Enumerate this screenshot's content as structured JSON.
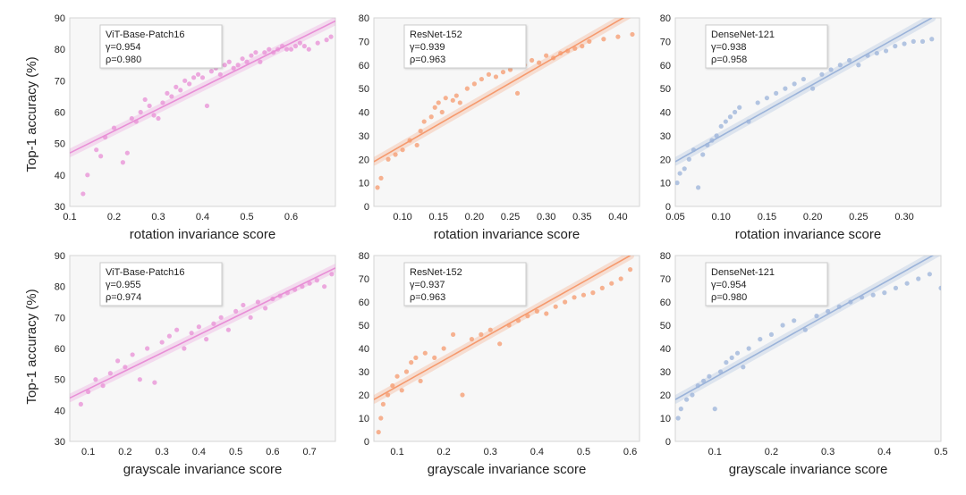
{
  "figure": {
    "ylabel": "Top-1 accuracy (%)"
  },
  "chart_data": [
    {
      "type": "scatter",
      "title": "",
      "xlabel": "rotation invariance score",
      "ylabel": "Top-1 accuracy (%)",
      "xlim": [
        0.1,
        0.7
      ],
      "ylim": [
        30,
        90
      ],
      "xticks": [
        0.1,
        0.2,
        0.3,
        0.4,
        0.5,
        0.6
      ],
      "xtick_labels": [
        "0.1",
        "0.2",
        "0.3",
        "0.4",
        "0.5",
        "0.6"
      ],
      "yticks": [
        30,
        40,
        50,
        60,
        70,
        80,
        90
      ],
      "ytick_labels": [
        "30",
        "40",
        "50",
        "60",
        "70",
        "80",
        "90"
      ],
      "color": "#e88fd6",
      "series_name": "ViT-Base-Patch16",
      "stat_gamma": "γ=0.954",
      "stat_rho": "ρ=0.980",
      "fit": [
        [
          0.1,
          47
        ],
        [
          0.7,
          89
        ]
      ],
      "x": [
        0.13,
        0.14,
        0.16,
        0.17,
        0.18,
        0.2,
        0.22,
        0.23,
        0.24,
        0.25,
        0.26,
        0.27,
        0.28,
        0.29,
        0.3,
        0.31,
        0.32,
        0.33,
        0.34,
        0.35,
        0.36,
        0.37,
        0.38,
        0.39,
        0.4,
        0.41,
        0.42,
        0.43,
        0.44,
        0.45,
        0.46,
        0.47,
        0.48,
        0.49,
        0.5,
        0.51,
        0.52,
        0.53,
        0.54,
        0.55,
        0.56,
        0.57,
        0.58,
        0.59,
        0.6,
        0.61,
        0.62,
        0.63,
        0.64,
        0.66,
        0.68,
        0.69
      ],
      "y": [
        34,
        40,
        48,
        46,
        52,
        55,
        44,
        47,
        58,
        57,
        60,
        64,
        62,
        59,
        58,
        63,
        66,
        65,
        68,
        67,
        70,
        69,
        71,
        72,
        71,
        62,
        73,
        74,
        72,
        75,
        76,
        74,
        75,
        77,
        76,
        78,
        79,
        76,
        79,
        80,
        79,
        80,
        81,
        80,
        80,
        81,
        82,
        81,
        80,
        82,
        83,
        84
      ]
    },
    {
      "type": "scatter",
      "title": "",
      "xlabel": "rotation invariance score",
      "ylabel": "",
      "xlim": [
        0.06,
        0.43
      ],
      "ylim": [
        0,
        80
      ],
      "xticks": [
        0.1,
        0.15,
        0.2,
        0.25,
        0.3,
        0.35,
        0.4
      ],
      "xtick_labels": [
        "0.10",
        "0.15",
        "0.20",
        "0.25",
        "0.30",
        "0.35",
        "0.40"
      ],
      "yticks": [
        0,
        10,
        20,
        30,
        40,
        50,
        60,
        70,
        80
      ],
      "ytick_labels": [
        "0",
        "10",
        "20",
        "30",
        "40",
        "50",
        "60",
        "70",
        "80"
      ],
      "color": "#f59a6e",
      "series_name": "ResNet-152",
      "stat_gamma": "γ=0.939",
      "stat_rho": "ρ=0.963",
      "fit": [
        [
          0.06,
          19
        ],
        [
          0.43,
          84
        ]
      ],
      "x": [
        0.065,
        0.07,
        0.08,
        0.09,
        0.1,
        0.11,
        0.12,
        0.125,
        0.13,
        0.14,
        0.145,
        0.15,
        0.155,
        0.16,
        0.17,
        0.175,
        0.18,
        0.19,
        0.2,
        0.21,
        0.22,
        0.23,
        0.24,
        0.25,
        0.26,
        0.27,
        0.28,
        0.29,
        0.3,
        0.31,
        0.32,
        0.33,
        0.34,
        0.35,
        0.36,
        0.38,
        0.4,
        0.42
      ],
      "y": [
        8,
        12,
        20,
        22,
        24,
        28,
        26,
        32,
        36,
        38,
        42,
        44,
        40,
        46,
        45,
        47,
        44,
        50,
        52,
        54,
        56,
        55,
        57,
        58,
        48,
        60,
        62,
        61,
        64,
        63,
        65,
        66,
        67,
        68,
        70,
        71,
        72,
        73
      ]
    },
    {
      "type": "scatter",
      "title": "",
      "xlabel": "rotation invariance score",
      "ylabel": "",
      "xlim": [
        0.05,
        0.34
      ],
      "ylim": [
        0,
        80
      ],
      "xticks": [
        0.05,
        0.1,
        0.15,
        0.2,
        0.25,
        0.3
      ],
      "xtick_labels": [
        "0.05",
        "0.10",
        "0.15",
        "0.20",
        "0.25",
        "0.30"
      ],
      "yticks": [
        0,
        10,
        20,
        30,
        40,
        50,
        60,
        70,
        80
      ],
      "ytick_labels": [
        "0",
        "10",
        "20",
        "30",
        "40",
        "50",
        "60",
        "70",
        "80"
      ],
      "color": "#9bb3d9",
      "series_name": "DenseNet-121",
      "stat_gamma": "γ=0.938",
      "stat_rho": "ρ=0.958",
      "fit": [
        [
          0.05,
          19
        ],
        [
          0.33,
          80
        ]
      ],
      "x": [
        0.052,
        0.055,
        0.06,
        0.065,
        0.07,
        0.075,
        0.08,
        0.085,
        0.09,
        0.095,
        0.1,
        0.105,
        0.11,
        0.115,
        0.12,
        0.13,
        0.14,
        0.15,
        0.16,
        0.17,
        0.18,
        0.19,
        0.2,
        0.21,
        0.22,
        0.23,
        0.24,
        0.25,
        0.26,
        0.27,
        0.28,
        0.29,
        0.3,
        0.31,
        0.32,
        0.33
      ],
      "y": [
        10,
        14,
        16,
        20,
        24,
        8,
        22,
        26,
        28,
        30,
        34,
        36,
        38,
        40,
        42,
        36,
        44,
        46,
        48,
        50,
        52,
        54,
        50,
        56,
        58,
        60,
        62,
        60,
        64,
        65,
        66,
        68,
        69,
        70,
        70,
        71
      ]
    },
    {
      "type": "scatter",
      "title": "",
      "xlabel": "grayscale invariance score",
      "ylabel": "Top-1 accuracy (%)",
      "xlim": [
        0.05,
        0.77
      ],
      "ylim": [
        30,
        90
      ],
      "xticks": [
        0.1,
        0.2,
        0.3,
        0.4,
        0.5,
        0.6,
        0.7
      ],
      "xtick_labels": [
        "0.1",
        "0.2",
        "0.3",
        "0.4",
        "0.5",
        "0.6",
        "0.7"
      ],
      "yticks": [
        30,
        40,
        50,
        60,
        70,
        80,
        90
      ],
      "ytick_labels": [
        "30",
        "40",
        "50",
        "60",
        "70",
        "80",
        "90"
      ],
      "color": "#e88fd6",
      "series_name": "ViT-Base-Patch16",
      "stat_gamma": "γ=0.955",
      "stat_rho": "ρ=0.974",
      "fit": [
        [
          0.05,
          44
        ],
        [
          0.77,
          86
        ]
      ],
      "x": [
        0.08,
        0.1,
        0.12,
        0.14,
        0.16,
        0.18,
        0.2,
        0.22,
        0.24,
        0.26,
        0.28,
        0.3,
        0.32,
        0.34,
        0.36,
        0.38,
        0.4,
        0.42,
        0.44,
        0.46,
        0.48,
        0.5,
        0.52,
        0.54,
        0.56,
        0.58,
        0.6,
        0.62,
        0.64,
        0.66,
        0.68,
        0.7,
        0.72,
        0.74,
        0.76
      ],
      "y": [
        42,
        46,
        50,
        48,
        52,
        56,
        54,
        58,
        50,
        60,
        49,
        62,
        64,
        66,
        60,
        65,
        67,
        63,
        68,
        70,
        66,
        72,
        74,
        70,
        75,
        73,
        76,
        77,
        78,
        79,
        80,
        81,
        82,
        80,
        84
      ]
    },
    {
      "type": "scatter",
      "title": "",
      "xlabel": "grayscale invariance score",
      "ylabel": "",
      "xlim": [
        0.05,
        0.62
      ],
      "ylim": [
        0,
        80
      ],
      "xticks": [
        0.1,
        0.2,
        0.3,
        0.4,
        0.5,
        0.6
      ],
      "xtick_labels": [
        "0.1",
        "0.2",
        "0.3",
        "0.4",
        "0.5",
        "0.6"
      ],
      "yticks": [
        0,
        10,
        20,
        30,
        40,
        50,
        60,
        70,
        80
      ],
      "ytick_labels": [
        "0",
        "10",
        "20",
        "30",
        "40",
        "50",
        "60",
        "70",
        "80"
      ],
      "color": "#f59a6e",
      "series_name": "ResNet-152",
      "stat_gamma": "γ=0.937",
      "stat_rho": "ρ=0.963",
      "fit": [
        [
          0.05,
          18
        ],
        [
          0.6,
          80
        ]
      ],
      "x": [
        0.06,
        0.065,
        0.07,
        0.08,
        0.09,
        0.1,
        0.11,
        0.12,
        0.13,
        0.14,
        0.15,
        0.16,
        0.18,
        0.2,
        0.22,
        0.24,
        0.26,
        0.28,
        0.3,
        0.32,
        0.34,
        0.36,
        0.38,
        0.4,
        0.42,
        0.44,
        0.46,
        0.48,
        0.5,
        0.52,
        0.54,
        0.56,
        0.58,
        0.6
      ],
      "y": [
        4,
        10,
        16,
        20,
        24,
        28,
        22,
        30,
        34,
        36,
        26,
        38,
        36,
        40,
        46,
        20,
        44,
        46,
        48,
        42,
        50,
        52,
        54,
        56,
        55,
        58,
        60,
        62,
        63,
        64,
        66,
        68,
        70,
        74
      ]
    },
    {
      "type": "scatter",
      "title": "",
      "xlabel": "grayscale invariance score",
      "ylabel": "",
      "xlim": [
        0.03,
        0.5
      ],
      "ylim": [
        0,
        80
      ],
      "xticks": [
        0.1,
        0.2,
        0.3,
        0.4,
        0.5
      ],
      "xtick_labels": [
        "0.1",
        "0.2",
        "0.3",
        "0.4",
        "0.5"
      ],
      "yticks": [
        0,
        10,
        20,
        30,
        40,
        50,
        60,
        70,
        80
      ],
      "ytick_labels": [
        "0",
        "10",
        "20",
        "30",
        "40",
        "50",
        "60",
        "70",
        "80"
      ],
      "color": "#9bb3d9",
      "series_name": "DenseNet-121",
      "stat_gamma": "γ=0.954",
      "stat_rho": "ρ=0.980",
      "fit": [
        [
          0.03,
          18
        ],
        [
          0.5,
          82
        ]
      ],
      "x": [
        0.035,
        0.04,
        0.05,
        0.06,
        0.07,
        0.08,
        0.09,
        0.1,
        0.11,
        0.12,
        0.13,
        0.14,
        0.15,
        0.16,
        0.18,
        0.2,
        0.22,
        0.24,
        0.26,
        0.28,
        0.3,
        0.32,
        0.34,
        0.36,
        0.38,
        0.4,
        0.42,
        0.44,
        0.46,
        0.48,
        0.5
      ],
      "y": [
        10,
        14,
        18,
        20,
        24,
        26,
        28,
        14,
        30,
        34,
        36,
        38,
        32,
        40,
        44,
        46,
        50,
        52,
        48,
        54,
        56,
        58,
        60,
        62,
        63,
        64,
        66,
        68,
        70,
        72,
        66
      ]
    }
  ]
}
